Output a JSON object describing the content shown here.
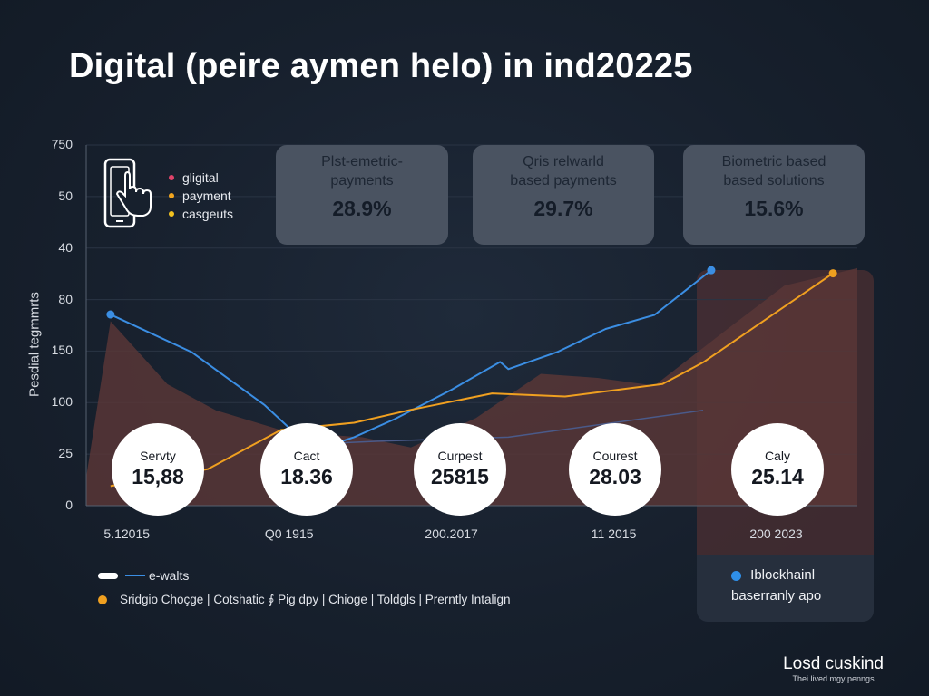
{
  "title": "Digital (peire aymen helo) in ind20225",
  "phone_legend": {
    "items": [
      {
        "label": "gligital",
        "color": "#e0436a"
      },
      {
        "label": "payment",
        "color": "#f2a51f"
      },
      {
        "label": "casgeuts",
        "color": "#f2c21f"
      }
    ]
  },
  "stat_cards": [
    {
      "label_line1": "Plst-emetric-",
      "label_line2": "payments",
      "value": "28.9%"
    },
    {
      "label_line1": "Qris relwarld",
      "label_line2": "based payments",
      "value": "29.7%"
    },
    {
      "label_line1": "Biometric based",
      "label_line2": "based solutions",
      "value": "15.6%"
    }
  ],
  "bubbles": [
    {
      "label": "Servty",
      "value": "15,88"
    },
    {
      "label": "Cact",
      "value": "18.36"
    },
    {
      "label": "Curpest",
      "value": "25815"
    },
    {
      "label": "Courest",
      "value": "28.03"
    },
    {
      "label": "Caly",
      "value": "25.14"
    }
  ],
  "blockchain_legend": {
    "line1": "Iblockhainl",
    "line2": "baserranly apo"
  },
  "bottom_legend": {
    "line1": "e-walts",
    "line2": "Sridgio  Choçge  |  Cotshatic ∮ Pig dpy  |  Chioge  |  Toldgls  |  Prerntly Intalign"
  },
  "brand": {
    "name": "Losd cuskind",
    "tagline": "Thei lived mgy penngs"
  },
  "colors": {
    "blue": "#3b8ee3",
    "orange": "#f0a020",
    "area": "#5a3737",
    "background": "#17202d"
  },
  "chart_data": {
    "type": "line",
    "title": "Digital (peire aymen helo) in ind20225",
    "xlabel": "",
    "ylabel": "Pesdial tegmmrts",
    "x_tick_labels": [
      "5.12015",
      "Q0 1915",
      "200.2017",
      "11 2015",
      "200 2023"
    ],
    "x_tick_positions": [
      0.5,
      2.5,
      4.5,
      6.5,
      8.5
    ],
    "y_tick_labels": [
      "750",
      "50",
      "40",
      "80",
      "150",
      "100",
      "25",
      "0"
    ],
    "y_tick_values": [
      7,
      6,
      5,
      4,
      3,
      2,
      1,
      0
    ],
    "x_range": [
      0,
      9.5
    ],
    "y_range": [
      0,
      7
    ],
    "grid": true,
    "legend": "bottom-left",
    "series": [
      {
        "name": "e-walts",
        "color": "#3b8ee3",
        "x": [
          0.3,
          1.3,
          2.2,
          2.8,
          3.3,
          3.8,
          4.5,
          5.1,
          5.2,
          5.8,
          6.4,
          7.0,
          7.7
        ],
        "y": [
          3.71,
          2.98,
          1.95,
          1.07,
          1.33,
          1.68,
          2.25,
          2.79,
          2.65,
          2.98,
          3.43,
          3.7,
          4.57
        ],
        "markers": [
          [
            0.3,
            3.71
          ],
          [
            2.8,
            1.07
          ],
          [
            7.7,
            4.57
          ]
        ]
      },
      {
        "name": "Sridgio Choçge",
        "color": "#f0a020",
        "x": [
          0.3,
          1.5,
          2.4,
          3.3,
          4.0,
          5.0,
          5.9,
          7.1,
          7.6,
          9.2
        ],
        "y": [
          0.38,
          0.71,
          1.47,
          1.61,
          1.86,
          2.18,
          2.12,
          2.36,
          2.78,
          4.51
        ],
        "markers": [
          [
            9.2,
            4.51
          ]
        ]
      },
      {
        "name": "faint trend",
        "color": "#4a5a8a",
        "x": [
          2.6,
          3.6,
          5.2,
          7.6
        ],
        "y": [
          1.18,
          1.25,
          1.33,
          1.85
        ]
      }
    ],
    "area": {
      "name": "background area",
      "x": [
        0,
        0.3,
        1.0,
        1.6,
        2.5,
        3.4,
        4.0,
        4.8,
        5.6,
        6.3,
        7.0,
        7.9,
        8.6,
        9.5,
        9.5,
        0
      ],
      "y": [
        0.55,
        3.58,
        2.36,
        1.85,
        1.42,
        1.33,
        1.13,
        1.7,
        2.56,
        2.48,
        2.33,
        3.43,
        4.27,
        4.61,
        0,
        0
      ]
    }
  }
}
